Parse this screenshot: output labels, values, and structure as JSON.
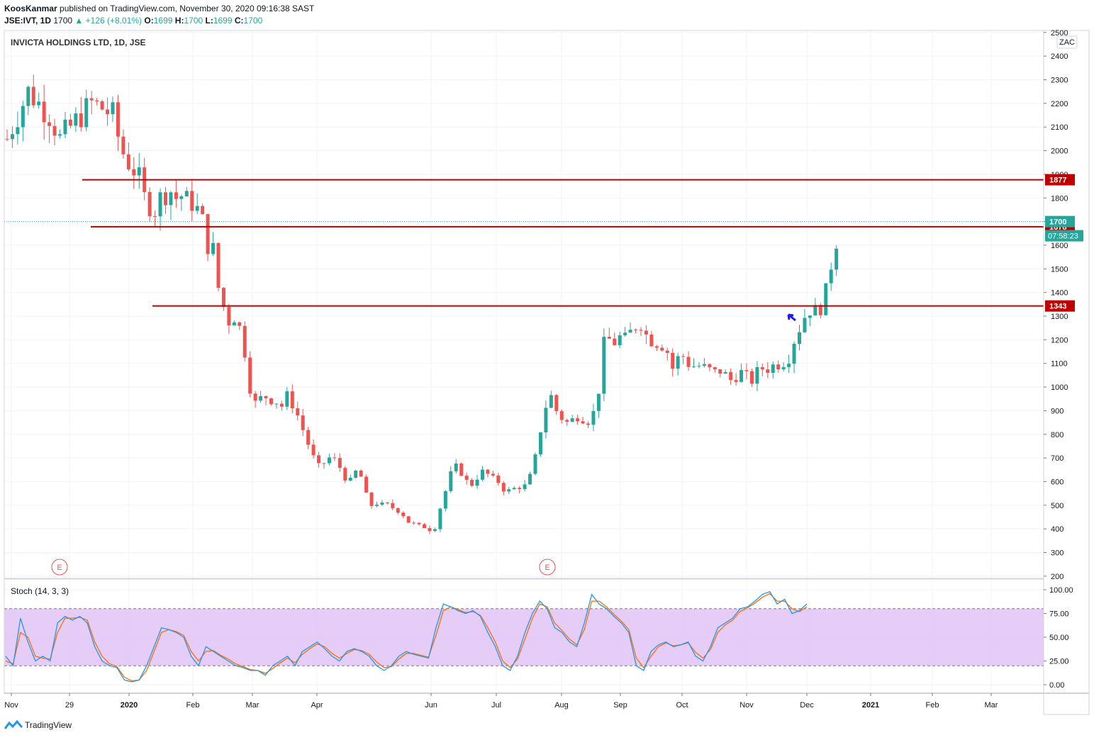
{
  "header": {
    "publisher": "KoosKanmar",
    "published_text": "published on TradingView.com, November 30, 2020 09:16:38 SAST",
    "symbol": "JSE:IVT, 1D",
    "last": "1700",
    "change": "+126 (+8.01%)",
    "o_label": "O:",
    "o": "1699",
    "h_label": "H:",
    "h": "1700",
    "l_label": "L:",
    "l": "1699",
    "c_label": "C:",
    "c": "1700"
  },
  "chart_title": "INVICTA HOLDINGS LTD, 1D, JSE",
  "currency": "ZAC",
  "brand": "TradingView",
  "indicator_label": "Stoch (14, 3, 3)",
  "earnings_marker": "E",
  "colors": {
    "up": "#26a69a",
    "down": "#ef5350",
    "level_line": "#c00000",
    "k_line": "#2196f3",
    "d_line": "#ff6d00",
    "band": "#e1c4f7"
  },
  "price_labels": {
    "last": "1700",
    "countdown": "07:58:23"
  },
  "chart_data": [
    {
      "type": "candlestick",
      "title": "INVICTA HOLDINGS LTD, 1D, JSE",
      "x_ticks": [
        "Nov",
        "29",
        "2020",
        "Feb",
        "Mar",
        "Apr",
        "Jun",
        "Jul",
        "Aug",
        "Sep",
        "Oct",
        "Nov",
        "Dec",
        "2021",
        "Feb",
        "Mar"
      ],
      "y_ticks": [
        2500,
        2400,
        2300,
        2200,
        2100,
        2000,
        1900,
        1800,
        1700,
        1600,
        1500,
        1400,
        1300,
        1200,
        1100,
        1000,
        900,
        800,
        700,
        600,
        500,
        400,
        300,
        200
      ],
      "ylim": [
        200,
        2500
      ],
      "close_path": [
        [
          0,
          2050
        ],
        [
          4,
          2250
        ],
        [
          8,
          2150
        ],
        [
          10,
          2050
        ],
        [
          14,
          2150
        ],
        [
          16,
          2200
        ],
        [
          18,
          2180
        ],
        [
          20,
          2150
        ],
        [
          21,
          2060
        ],
        [
          22,
          1990
        ],
        [
          23,
          1950
        ],
        [
          24,
          1920
        ],
        [
          25,
          1880
        ],
        [
          26,
          1800
        ],
        [
          27,
          1770
        ],
        [
          28,
          1750
        ],
        [
          29,
          1800
        ],
        [
          30,
          1820
        ],
        [
          31,
          1830
        ],
        [
          32,
          1800
        ],
        [
          33,
          1810
        ],
        [
          34,
          1790
        ],
        [
          35,
          1780
        ],
        [
          36,
          1750
        ],
        [
          37,
          1700
        ],
        [
          38,
          1600
        ],
        [
          39,
          1580
        ],
        [
          40,
          1420
        ],
        [
          41,
          1340
        ],
        [
          42,
          1280
        ],
        [
          43,
          1300
        ],
        [
          44,
          1250
        ],
        [
          45,
          1150
        ],
        [
          46,
          1000
        ],
        [
          47,
          930
        ],
        [
          48,
          950
        ],
        [
          49,
          960
        ],
        [
          50,
          950
        ],
        [
          51,
          940
        ],
        [
          52,
          920
        ],
        [
          53,
          960
        ],
        [
          54,
          930
        ],
        [
          55,
          880
        ],
        [
          56,
          820
        ],
        [
          57,
          760
        ],
        [
          58,
          700
        ],
        [
          59,
          660
        ],
        [
          60,
          680
        ],
        [
          61,
          700
        ],
        [
          62,
          690
        ],
        [
          63,
          660
        ],
        [
          64,
          620
        ],
        [
          65,
          600
        ],
        [
          66,
          640
        ],
        [
          67,
          620
        ],
        [
          68,
          540
        ],
        [
          69,
          500
        ],
        [
          70,
          510
        ],
        [
          71,
          500
        ],
        [
          72,
          500
        ],
        [
          73,
          490
        ],
        [
          74,
          480
        ],
        [
          75,
          460
        ],
        [
          76,
          430
        ],
        [
          77,
          420
        ],
        [
          78,
          410
        ],
        [
          79,
          410
        ],
        [
          80,
          400
        ],
        [
          81,
          410
        ],
        [
          82,
          490
        ],
        [
          83,
          560
        ],
        [
          84,
          630
        ],
        [
          85,
          660
        ],
        [
          86,
          640
        ],
        [
          87,
          600
        ],
        [
          88,
          590
        ],
        [
          89,
          620
        ],
        [
          90,
          640
        ],
        [
          91,
          630
        ],
        [
          92,
          610
        ],
        [
          93,
          600
        ],
        [
          94,
          570
        ],
        [
          95,
          560
        ],
        [
          96,
          570
        ],
        [
          97,
          580
        ],
        [
          98,
          580
        ],
        [
          99,
          620
        ],
        [
          100,
          700
        ],
        [
          101,
          820
        ],
        [
          102,
          920
        ],
        [
          103,
          960
        ],
        [
          104,
          900
        ],
        [
          105,
          870
        ],
        [
          106,
          850
        ],
        [
          107,
          860
        ],
        [
          108,
          880
        ],
        [
          109,
          870
        ],
        [
          110,
          860
        ],
        [
          111,
          890
        ],
        [
          112,
          990
        ],
        [
          113,
          1180
        ],
        [
          114,
          1200
        ],
        [
          115,
          1190
        ],
        [
          116,
          1210
        ],
        [
          117,
          1200
        ],
        [
          118,
          1230
        ],
        [
          119,
          1260
        ],
        [
          120,
          1270
        ],
        [
          121,
          1220
        ],
        [
          122,
          1200
        ],
        [
          123,
          1190
        ],
        [
          124,
          1180
        ],
        [
          125,
          1150
        ],
        [
          126,
          1080
        ],
        [
          127,
          1120
        ],
        [
          128,
          1130
        ],
        [
          129,
          1100
        ],
        [
          130,
          1090
        ],
        [
          131,
          1090
        ],
        [
          132,
          1080
        ],
        [
          133,
          1070
        ],
        [
          134,
          1060
        ],
        [
          135,
          1070
        ],
        [
          136,
          1050
        ],
        [
          137,
          1030
        ],
        [
          138,
          1050
        ],
        [
          139,
          1060
        ],
        [
          140,
          1040
        ],
        [
          141,
          1030
        ],
        [
          142,
          1060
        ],
        [
          143,
          1080
        ],
        [
          144,
          1080
        ],
        [
          145,
          1090
        ],
        [
          146,
          1100
        ],
        [
          147,
          1110
        ],
        [
          148,
          1130
        ],
        [
          149,
          1200
        ],
        [
          150,
          1250
        ],
        [
          151,
          1300
        ],
        [
          152,
          1330
        ],
        [
          153,
          1320
        ],
        [
          154,
          1340
        ],
        [
          155,
          1400
        ],
        [
          156,
          1520
        ],
        [
          157,
          1620
        ],
        [
          158,
          1700
        ]
      ],
      "levels": [
        1877,
        1678,
        1343
      ],
      "last_price": 1700
    },
    {
      "type": "line",
      "title": "Stoch (14, 3, 3)",
      "y_ticks": [
        "100.00",
        "75.00",
        "50.00",
        "25.00",
        "0.00"
      ],
      "ylim": [
        -5,
        105
      ],
      "bands": [
        80,
        20
      ],
      "series": [
        {
          "values": [
            30,
            20,
            70,
            45,
            25,
            30,
            25,
            65,
            72,
            68,
            72,
            65,
            40,
            25,
            20,
            18,
            5,
            3,
            5,
            20,
            40,
            60,
            58,
            55,
            50,
            30,
            20,
            40,
            35,
            30,
            25,
            20,
            18,
            15,
            15,
            10,
            20,
            25,
            30,
            20,
            35,
            40,
            45,
            38,
            30,
            25,
            35,
            38,
            35,
            30,
            20,
            15,
            20,
            30,
            35,
            32,
            30,
            28,
            60,
            85,
            82,
            78,
            75,
            78,
            72,
            55,
            40,
            20,
            15,
            30,
            55,
            75,
            88,
            80,
            60,
            55,
            45,
            40,
            65,
            95,
            85,
            80,
            72,
            65,
            55,
            20,
            15,
            35,
            42,
            45,
            40,
            42,
            45,
            30,
            25,
            40,
            60,
            65,
            70,
            80,
            82,
            88,
            95,
            98,
            85,
            90,
            75,
            78,
            85
          ]
        },
        {
          "values": [
            25,
            22,
            55,
            50,
            30,
            28,
            27,
            55,
            70,
            70,
            71,
            68,
            45,
            30,
            22,
            19,
            8,
            4,
            5,
            15,
            35,
            55,
            58,
            56,
            52,
            35,
            25,
            35,
            36,
            31,
            27,
            22,
            19,
            16,
            15,
            12,
            17,
            23,
            28,
            23,
            32,
            38,
            43,
            40,
            33,
            28,
            33,
            37,
            36,
            32,
            24,
            18,
            19,
            27,
            33,
            33,
            31,
            29,
            52,
            78,
            82,
            79,
            76,
            77,
            73,
            60,
            45,
            25,
            18,
            27,
            48,
            70,
            85,
            82,
            65,
            57,
            48,
            42,
            58,
            88,
            88,
            82,
            74,
            67,
            58,
            28,
            18,
            30,
            40,
            44,
            41,
            42,
            44,
            34,
            28,
            37,
            55,
            63,
            68,
            77,
            81,
            86,
            92,
            96,
            88,
            88,
            80,
            77,
            82
          ]
        }
      ]
    }
  ]
}
